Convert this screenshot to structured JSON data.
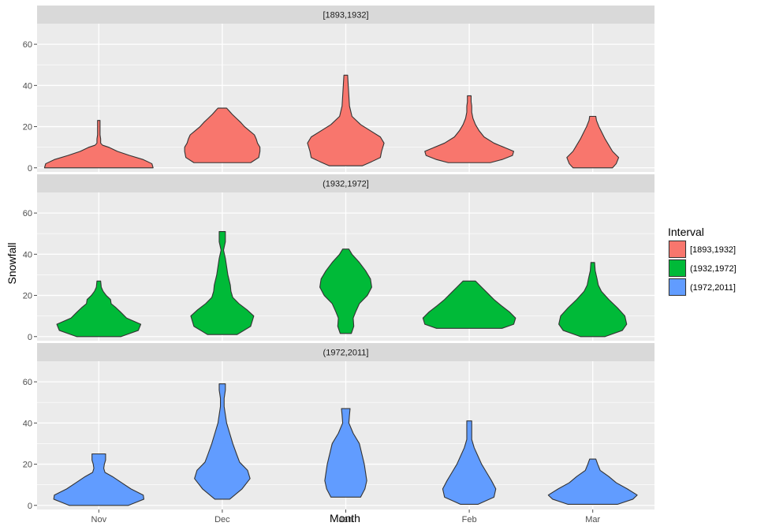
{
  "chart_data": {
    "type": "violin",
    "xlabel": "Month",
    "ylabel": "Snowfall",
    "categories": [
      "Nov",
      "Dec",
      "Jan",
      "Feb",
      "Mar"
    ],
    "ylim": [
      -2,
      70
    ],
    "yticks": [
      0,
      20,
      40,
      60
    ],
    "grid": true,
    "legend": {
      "title": "Interval",
      "position": "right",
      "entries": [
        "[1893,1932]",
        "(1932,1972]",
        "(1972,2011]"
      ]
    },
    "panels": [
      {
        "label": "[1893,1932]",
        "color": "#F8766D",
        "violins": [
          {
            "month": "Nov",
            "profile": [
              [
                0,
                0.88
              ],
              [
                2,
                0.86
              ],
              [
                4,
                0.72
              ],
              [
                6,
                0.5
              ],
              [
                8,
                0.3
              ],
              [
                10,
                0.16
              ],
              [
                11,
                0.06
              ],
              [
                12,
                0.03
              ],
              [
                14,
                0.03
              ],
              [
                16,
                0.02
              ],
              [
                18,
                0.02
              ],
              [
                20,
                0.02
              ],
              [
                23,
                0.02
              ]
            ]
          },
          {
            "month": "Dec",
            "profile": [
              [
                2.5,
                0.46
              ],
              [
                5,
                0.59
              ],
              [
                8,
                0.61
              ],
              [
                10,
                0.61
              ],
              [
                12,
                0.57
              ],
              [
                14,
                0.55
              ],
              [
                16,
                0.52
              ],
              [
                18,
                0.44
              ],
              [
                20,
                0.36
              ],
              [
                22,
                0.3
              ],
              [
                24,
                0.23
              ],
              [
                26,
                0.16
              ],
              [
                28,
                0.1
              ],
              [
                29,
                0.07
              ]
            ]
          },
          {
            "month": "Jan",
            "profile": [
              [
                1,
                0.27
              ],
              [
                3,
                0.42
              ],
              [
                5,
                0.56
              ],
              [
                8,
                0.58
              ],
              [
                12,
                0.62
              ],
              [
                15,
                0.56
              ],
              [
                18,
                0.4
              ],
              [
                21,
                0.24
              ],
              [
                25,
                0.1
              ],
              [
                30,
                0.06
              ],
              [
                35,
                0.05
              ],
              [
                40,
                0.04
              ],
              [
                45,
                0.03
              ]
            ]
          },
          {
            "month": "Feb",
            "profile": [
              [
                2.5,
                0.34
              ],
              [
                4,
                0.53
              ],
              [
                6,
                0.7
              ],
              [
                8,
                0.72
              ],
              [
                10,
                0.56
              ],
              [
                12,
                0.4
              ],
              [
                15,
                0.24
              ],
              [
                18,
                0.16
              ],
              [
                21,
                0.1
              ],
              [
                24,
                0.06
              ],
              [
                27,
                0.04
              ],
              [
                30,
                0.04
              ],
              [
                32,
                0.03
              ],
              [
                35,
                0.03
              ]
            ]
          },
          {
            "month": "Mar",
            "profile": [
              [
                0,
                0.32
              ],
              [
                2,
                0.38
              ],
              [
                5,
                0.42
              ],
              [
                8,
                0.32
              ],
              [
                11,
                0.26
              ],
              [
                14,
                0.2
              ],
              [
                17,
                0.15
              ],
              [
                20,
                0.1
              ],
              [
                23,
                0.06
              ],
              [
                25,
                0.05
              ]
            ]
          }
        ]
      },
      {
        "label": "(1932,1972]",
        "color": "#00BA38",
        "violins": [
          {
            "month": "Nov",
            "profile": [
              [
                0,
                0.36
              ],
              [
                3,
                0.64
              ],
              [
                6,
                0.68
              ],
              [
                9,
                0.45
              ],
              [
                12,
                0.35
              ],
              [
                14,
                0.28
              ],
              [
                16,
                0.2
              ],
              [
                18,
                0.19
              ],
              [
                20,
                0.12
              ],
              [
                22,
                0.07
              ],
              [
                24,
                0.04
              ],
              [
                27,
                0.03
              ]
            ]
          },
          {
            "month": "Dec",
            "profile": [
              [
                1,
                0.24
              ],
              [
                5,
                0.46
              ],
              [
                10,
                0.51
              ],
              [
                13,
                0.4
              ],
              [
                16,
                0.27
              ],
              [
                19,
                0.17
              ],
              [
                22,
                0.14
              ],
              [
                25,
                0.13
              ],
              [
                30,
                0.09
              ],
              [
                34,
                0.07
              ],
              [
                38,
                0.05
              ],
              [
                42,
                0.02
              ],
              [
                46,
                0.05
              ],
              [
                51,
                0.05
              ]
            ]
          },
          {
            "month": "Jan",
            "profile": [
              [
                1.5,
                0.09
              ],
              [
                5,
                0.13
              ],
              [
                9,
                0.12
              ],
              [
                12,
                0.16
              ],
              [
                16,
                0.22
              ],
              [
                20,
                0.35
              ],
              [
                24,
                0.42
              ],
              [
                28,
                0.4
              ],
              [
                32,
                0.32
              ],
              [
                36,
                0.22
              ],
              [
                40,
                0.1
              ],
              [
                42.5,
                0.05
              ]
            ]
          },
          {
            "month": "Feb",
            "profile": [
              [
                4,
                0.53
              ],
              [
                6,
                0.72
              ],
              [
                9,
                0.75
              ],
              [
                12,
                0.65
              ],
              [
                15,
                0.52
              ],
              [
                18,
                0.4
              ],
              [
                21,
                0.3
              ],
              [
                24,
                0.2
              ],
              [
                27,
                0.1
              ]
            ]
          },
          {
            "month": "Mar",
            "profile": [
              [
                0,
                0.2
              ],
              [
                3,
                0.48
              ],
              [
                6,
                0.55
              ],
              [
                10,
                0.52
              ],
              [
                14,
                0.4
              ],
              [
                18,
                0.26
              ],
              [
                22,
                0.14
              ],
              [
                25,
                0.09
              ],
              [
                28,
                0.07
              ],
              [
                32,
                0.04
              ],
              [
                36,
                0.03
              ]
            ]
          }
        ]
      },
      {
        "label": "(1972,2011]",
        "color": "#619CFF",
        "violins": [
          {
            "month": "Nov",
            "profile": [
              [
                0,
                0.48
              ],
              [
                3,
                0.73
              ],
              [
                5,
                0.72
              ],
              [
                8,
                0.52
              ],
              [
                11,
                0.37
              ],
              [
                14,
                0.22
              ],
              [
                16,
                0.1
              ],
              [
                18,
                0.08
              ],
              [
                20,
                0.09
              ],
              [
                22,
                0.11
              ],
              [
                25,
                0.11
              ]
            ]
          },
          {
            "month": "Dec",
            "profile": [
              [
                3,
                0.12
              ],
              [
                8,
                0.32
              ],
              [
                13,
                0.45
              ],
              [
                17,
                0.41
              ],
              [
                21,
                0.28
              ],
              [
                25,
                0.23
              ],
              [
                30,
                0.17
              ],
              [
                35,
                0.12
              ],
              [
                40,
                0.07
              ],
              [
                44,
                0.05
              ],
              [
                48,
                0.03
              ],
              [
                52,
                0.03
              ],
              [
                56,
                0.05
              ],
              [
                59,
                0.05
              ]
            ]
          },
          {
            "month": "Jan",
            "profile": [
              [
                4,
                0.24
              ],
              [
                8,
                0.31
              ],
              [
                12,
                0.34
              ],
              [
                16,
                0.32
              ],
              [
                20,
                0.3
              ],
              [
                25,
                0.26
              ],
              [
                30,
                0.22
              ],
              [
                35,
                0.12
              ],
              [
                40,
                0.05
              ],
              [
                44,
                0.06
              ],
              [
                47,
                0.07
              ]
            ]
          },
          {
            "month": "Feb",
            "profile": [
              [
                0.5,
                0.14
              ],
              [
                4,
                0.4
              ],
              [
                8,
                0.43
              ],
              [
                12,
                0.36
              ],
              [
                16,
                0.28
              ],
              [
                20,
                0.2
              ],
              [
                24,
                0.14
              ],
              [
                28,
                0.08
              ],
              [
                32,
                0.04
              ],
              [
                36,
                0.04
              ],
              [
                41,
                0.04
              ]
            ]
          },
          {
            "month": "Mar",
            "profile": [
              [
                0.5,
                0.4
              ],
              [
                3,
                0.65
              ],
              [
                5,
                0.72
              ],
              [
                8,
                0.56
              ],
              [
                11,
                0.38
              ],
              [
                14,
                0.26
              ],
              [
                17,
                0.12
              ],
              [
                20,
                0.08
              ],
              [
                22.5,
                0.05
              ]
            ]
          }
        ]
      }
    ]
  }
}
